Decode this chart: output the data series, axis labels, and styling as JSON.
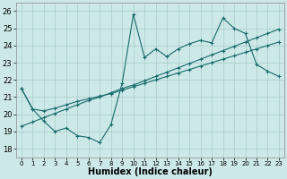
{
  "title": "",
  "xlabel": "Humidex (Indice chaleur)",
  "xlim": [
    -0.5,
    23.5
  ],
  "ylim": [
    17.5,
    26.5
  ],
  "xticks": [
    0,
    1,
    2,
    3,
    4,
    5,
    6,
    7,
    8,
    9,
    10,
    11,
    12,
    13,
    14,
    15,
    16,
    17,
    18,
    19,
    20,
    21,
    22,
    23
  ],
  "yticks": [
    18,
    19,
    20,
    21,
    22,
    23,
    24,
    25,
    26
  ],
  "bg_color": "#cce8e8",
  "grid_color": "#aacccc",
  "line_color": "#1a6b6b",
  "line1_y": [
    21.5,
    20.3,
    19.6,
    19.0,
    19.2,
    18.75,
    18.65,
    18.35,
    19.4,
    21.8,
    25.8,
    23.3,
    23.8,
    23.35,
    23.8,
    24.1,
    24.3,
    24.15,
    25.6,
    25.0,
    24.7,
    22.9,
    22.5,
    22.2
  ],
  "line2_y": [
    19.3,
    19.55,
    19.8,
    20.05,
    20.3,
    20.55,
    20.8,
    21.0,
    21.25,
    21.5,
    21.7,
    21.95,
    22.2,
    22.45,
    22.7,
    22.95,
    23.2,
    23.45,
    23.7,
    23.95,
    24.2,
    24.45,
    24.7,
    24.95
  ],
  "line3_y": [
    21.5,
    20.3,
    20.2,
    20.35,
    20.55,
    20.75,
    20.9,
    21.05,
    21.2,
    21.4,
    21.6,
    21.8,
    22.0,
    22.2,
    22.4,
    22.6,
    22.8,
    23.0,
    23.2,
    23.4,
    23.6,
    23.8,
    24.0,
    24.2
  ]
}
